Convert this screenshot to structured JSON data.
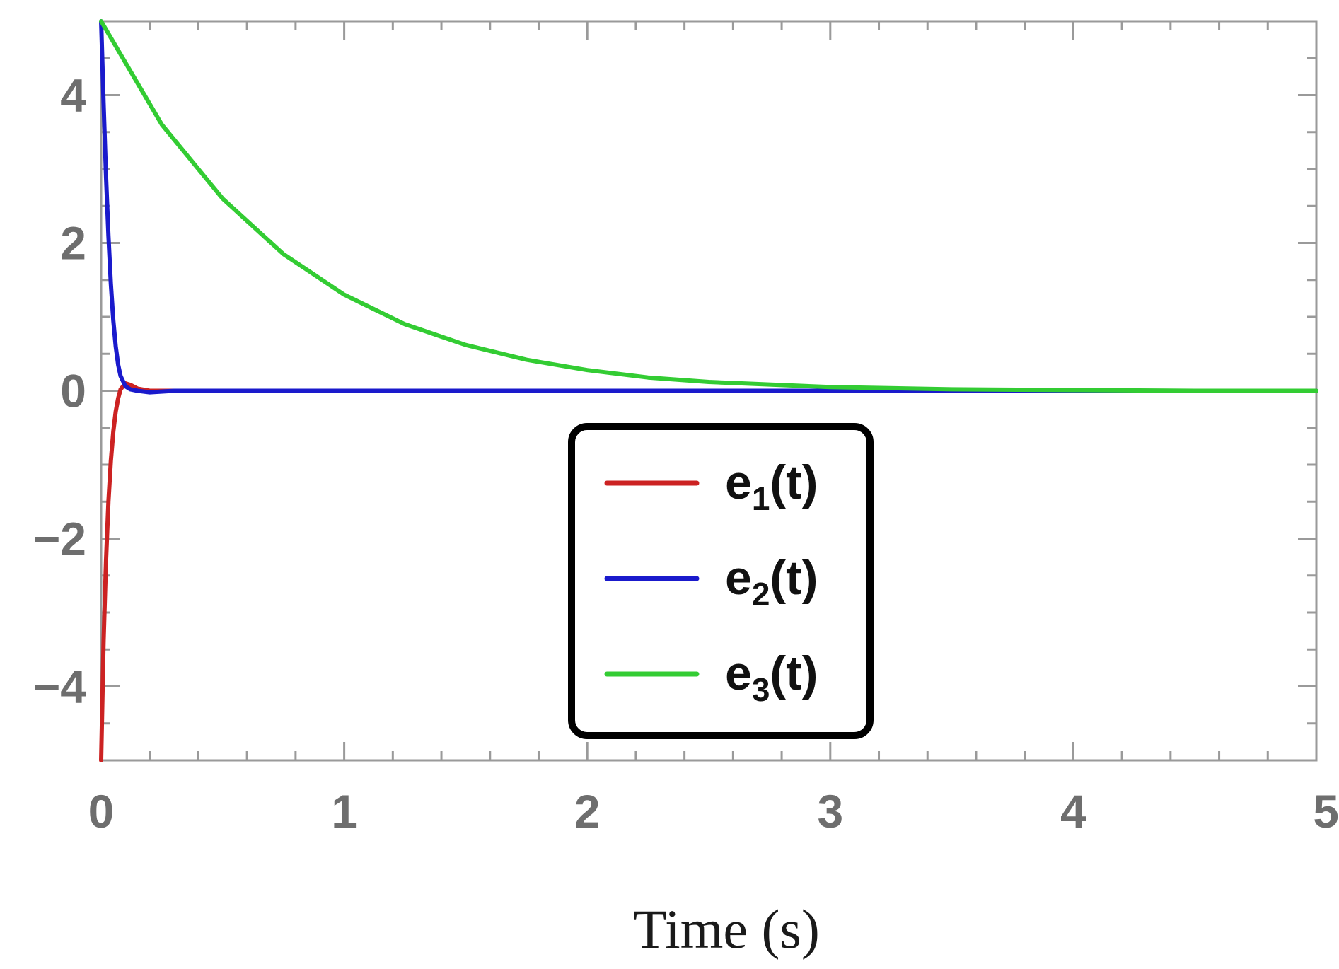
{
  "chart_data": {
    "type": "line",
    "title": "",
    "xlabel": "Time (s)",
    "ylabel": "",
    "xlim": [
      0,
      5
    ],
    "ylim": [
      -5,
      5
    ],
    "xticks": [
      0,
      1,
      2,
      3,
      4,
      5
    ],
    "yticks": [
      -4,
      -2,
      0,
      2,
      4
    ],
    "xtick_labels": [
      "0",
      "1",
      "2",
      "3",
      "4",
      "5"
    ],
    "ytick_labels": [
      "−4",
      "−2",
      "0",
      "2",
      "4"
    ],
    "grid": false,
    "legend_position": "lower-center",
    "series": [
      {
        "name": "e1(t)",
        "legend_base": "e",
        "legend_sub": "1",
        "legend_suffix": "(t)",
        "color": "#cc2222",
        "x": [
          0,
          0.01,
          0.02,
          0.03,
          0.04,
          0.05,
          0.06,
          0.07,
          0.08,
          0.1,
          0.12,
          0.15,
          0.2,
          0.3,
          0.5,
          1,
          2,
          3,
          4,
          5
        ],
        "y": [
          -5,
          -3.4,
          -2.3,
          -1.5,
          -0.95,
          -0.55,
          -0.28,
          -0.1,
          0.02,
          0.1,
          0.08,
          0.03,
          0,
          0,
          0,
          0,
          0,
          0,
          0,
          0
        ]
      },
      {
        "name": "e2(t)",
        "legend_base": "e",
        "legend_sub": "2",
        "legend_suffix": "(t)",
        "color": "#1a1acc",
        "x": [
          0,
          0.01,
          0.02,
          0.03,
          0.04,
          0.05,
          0.06,
          0.07,
          0.08,
          0.1,
          0.12,
          0.15,
          0.2,
          0.3,
          0.5,
          1,
          2,
          3,
          4,
          5
        ],
        "y": [
          5,
          3.9,
          2.9,
          2.1,
          1.45,
          0.95,
          0.6,
          0.35,
          0.2,
          0.06,
          0.02,
          0,
          -0.02,
          0,
          0,
          0,
          0,
          0,
          0,
          0
        ]
      },
      {
        "name": "e3(t)",
        "legend_base": "e",
        "legend_sub": "3",
        "legend_suffix": "(t)",
        "color": "#33cc33",
        "x": [
          0,
          0.25,
          0.5,
          0.75,
          1,
          1.25,
          1.5,
          1.75,
          2,
          2.25,
          2.5,
          3,
          3.5,
          4,
          4.5,
          5
        ],
        "y": [
          5,
          3.6,
          2.6,
          1.85,
          1.3,
          0.9,
          0.62,
          0.42,
          0.28,
          0.18,
          0.12,
          0.05,
          0.02,
          0.01,
          0,
          0
        ]
      }
    ]
  }
}
